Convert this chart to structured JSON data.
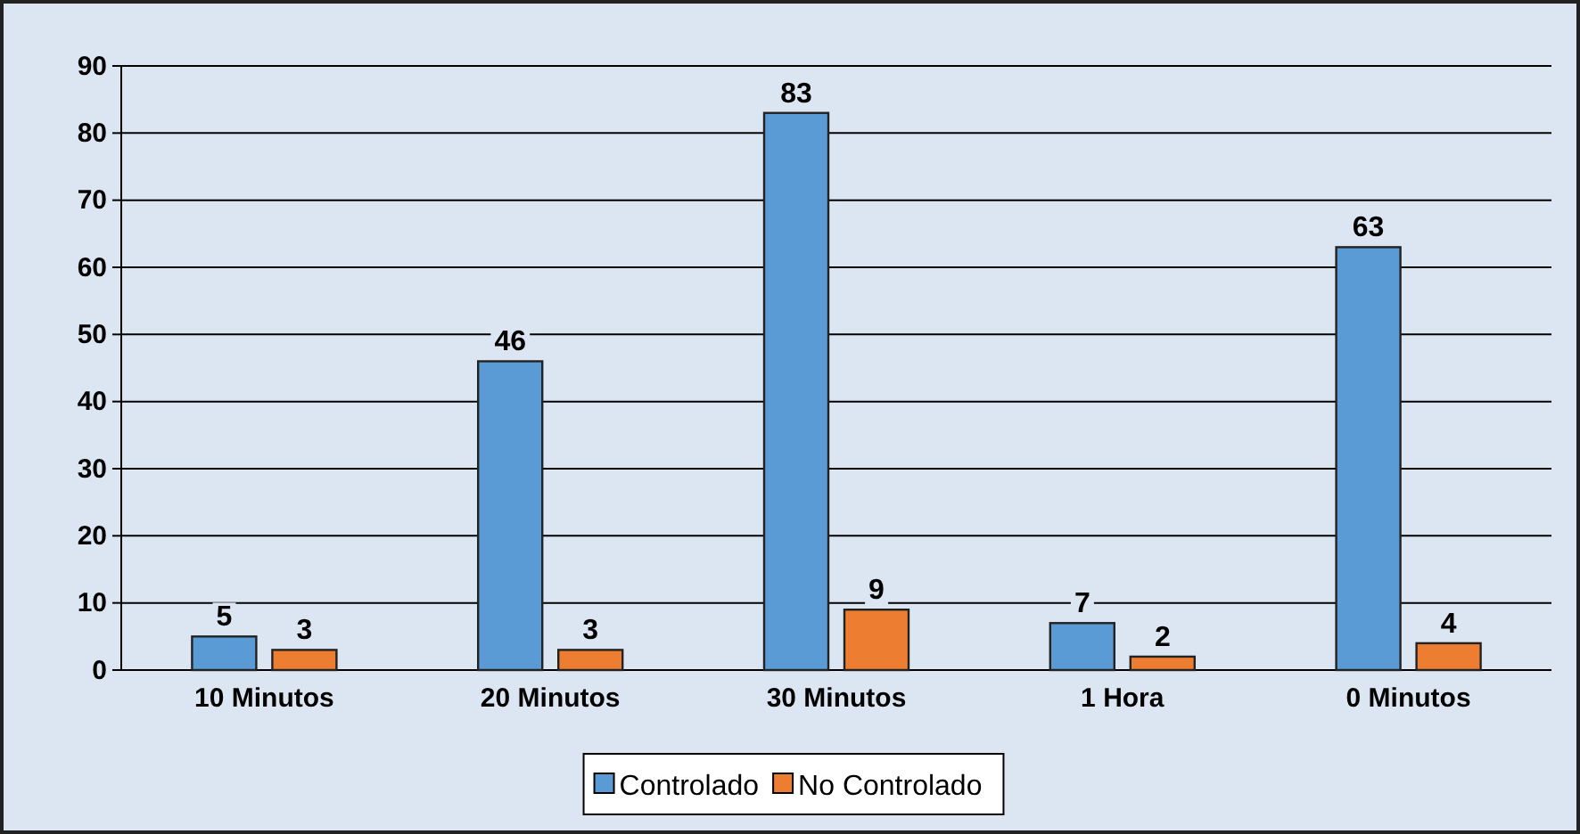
{
  "chart_data": {
    "type": "bar",
    "categories": [
      "10 Minutos",
      "20 Minutos",
      "30 Minutos",
      "1 Hora",
      "0 Minutos"
    ],
    "series": [
      {
        "name": "Controlado",
        "color": "#5b9bd5",
        "values": [
          5,
          46,
          83,
          7,
          63
        ]
      },
      {
        "name": "No Controlado",
        "color": "#ed7d31",
        "values": [
          3,
          3,
          9,
          2,
          4
        ]
      }
    ],
    "ylim": [
      0,
      90
    ],
    "yticks": [
      0,
      10,
      20,
      30,
      40,
      50,
      60,
      70,
      80,
      90
    ],
    "grid": "y",
    "legend": "bottom",
    "data_labels": true
  }
}
